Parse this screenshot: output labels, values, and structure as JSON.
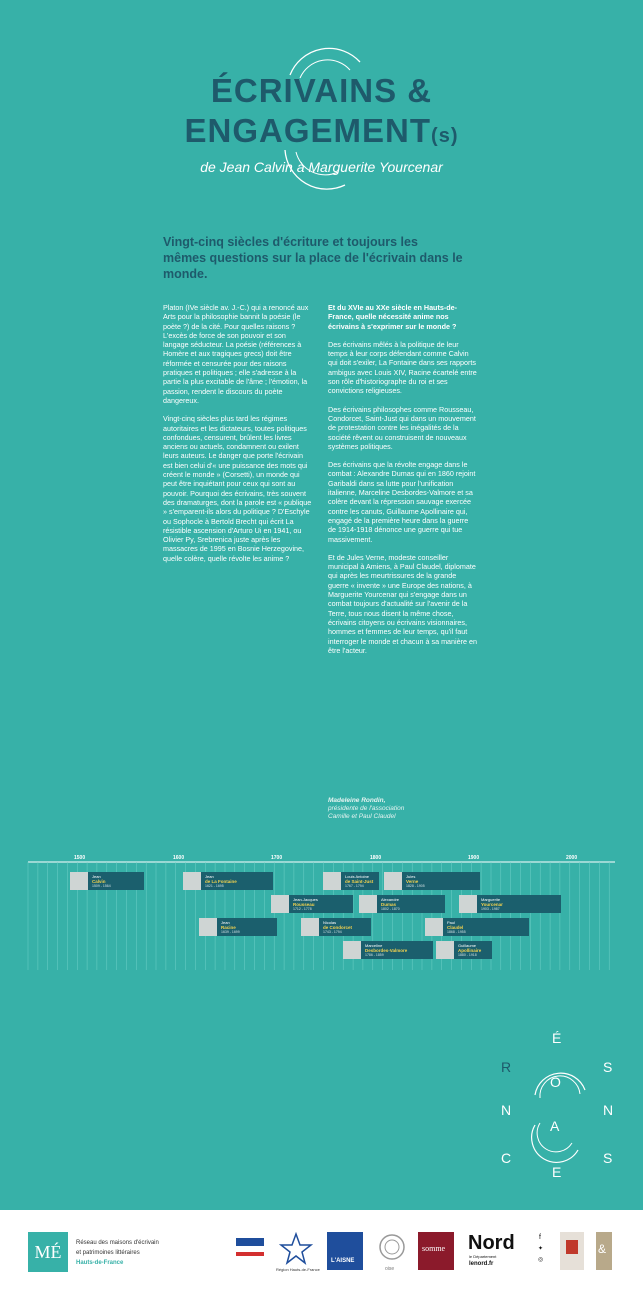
{
  "header": {
    "title_line1": "ÉCRIVAINS &",
    "title_line2": "ENGAGEMENT",
    "title_suffix": "(s)",
    "subtitle": "de Jean Calvin à Marguerite Yourcenar"
  },
  "intro": "Vingt-cinq siècles d'écriture et toujours les mêmes questions sur la place de l'écrivain dans le monde.",
  "left_column": [
    "Platon (IVe siècle av. J.-C.) qui a renoncé aux Arts pour la philosophie bannit la poésie (le poète ?) de la cité. Pour quelles raisons ? L'excès de force de son pouvoir et son langage séducteur. La poésie (références à Homère et aux tragiques grecs) doit être réformée et censurée pour des raisons pratiques et politiques ; elle s'adresse à la partie la plus excitable de l'âme ; l'émotion, la passion, rendent le discours du poète dangereux.",
    "Vingt-cinq siècles plus tard les régimes autoritaires et les dictateurs, toutes politiques confondues, censurent, brûlent les livres anciens ou actuels, condamnent ou exilent leurs auteurs. Le danger que porte l'écrivain est bien celui d'« une puissance des mots qui créent le monde » (Corsetti), un monde qui peut être inquiétant pour ceux qui sont au pouvoir. Pourquoi des écrivains, très souvent des dramaturges, dont la parole est « publique » s'emparent-ils alors du politique ? D'Eschyle ou Sophocle à Bertold Brecht qui écrit La résistible ascension d'Arturo Ui en 1941, ou Olivier Py, Srebrenica juste après les massacres de 1995 en Bosnie Herzegovine, quelle colère, quelle révolte les anime ?"
  ],
  "right_column": {
    "question": "Et du XVIe au XXe siècle en Hauts-de-France, quelle nécessité anime nos écrivains à s'exprimer sur le monde ?",
    "paragraphs": [
      "Des écrivains mêlés à la politique de leur temps à leur corps défendant comme Calvin qui doit s'exiler, La Fontaine dans ses rapports ambigus avec Louis XIV, Racine écartelé entre son rôle d'historiographe du roi et ses convictions religieuses.",
      "Des écrivains philosophes comme Rousseau, Condorcet, Saint-Just qui dans un mouvement de protestation contre les inégalités de la société rêvent ou construisent de nouveaux systèmes politiques.",
      "Des écrivains que la révolte engage dans le combat : Alexandre Dumas qui en 1860 rejoint Garibaldi dans sa lutte pour l'unification italienne, Marceline Desbordes-Valmore et sa colère devant la répression sauvage exercée contre les canuts, Guillaume Apollinaire qui, engagé de la première heure dans la guerre de 1914-1918 dénonce une guerre qui tue massivement.",
      "Et de Jules Verne, modeste conseiller municipal à Amiens, à Paul Claudel, diplomate qui après les meurtrissures de la grande guerre « invente » une Europe des nations, à Marguerite Yourcenar qui s'engage dans un combat toujours d'actualité sur l'avenir de la Terre, tous nous disent la même chose, écrivains citoyens ou écrivains visionnaires, hommes et femmes de leur temps, qu'il faut interroger le monde et chacun à sa manière en être l'acteur."
    ]
  },
  "author": {
    "name": "Madeleine Rondin,",
    "role_line1": "présidente de l'association",
    "role_line2": "Camille et Paul Claudel"
  },
  "timeline": {
    "ticks": [
      "1500",
      "1600",
      "1700",
      "1800",
      "1900",
      "2000"
    ],
    "writers": [
      {
        "first": "Jean",
        "last": "Calvin",
        "dates": "1509 - 1564"
      },
      {
        "first": "Jean",
        "last": "de La Fontaine",
        "dates": "1621 - 1695"
      },
      {
        "first": "Louis Antoine",
        "last": "de Saint-Just",
        "dates": "1767 - 1794"
      },
      {
        "first": "Jules",
        "last": "Verne",
        "dates": "1828 - 1905"
      },
      {
        "first": "Jean-Jacques",
        "last": "Rousseau",
        "dates": "1712 - 1778"
      },
      {
        "first": "Alexandre",
        "last": "Dumas",
        "dates": "1802 - 1870"
      },
      {
        "first": "Marguerite",
        "last": "Yourcenar",
        "dates": "1903 - 1987"
      },
      {
        "first": "Jean",
        "last": "Racine",
        "dates": "1639 - 1699"
      },
      {
        "first": "Nicolas",
        "last": "de Condorcet",
        "dates": "1743 - 1794"
      },
      {
        "first": "Paul",
        "last": "Claudel",
        "dates": "1868 - 1955"
      },
      {
        "first": "Marceline",
        "last": "Desbordes-Valmore",
        "dates": "1786 - 1859"
      },
      {
        "first": "Guillaume",
        "last": "Apollinaire",
        "dates": "1880 - 1918"
      }
    ]
  },
  "resonances": [
    "R",
    "É",
    "S",
    "O",
    "N",
    "A",
    "N",
    "C",
    "E",
    "S"
  ],
  "footer": {
    "network_logo": "MÉ",
    "network_line1": "Réseau des maisons d'écrivain",
    "network_line2": "et patrimoines littéraires",
    "network_region": "Hauts-de-France",
    "partners": {
      "region": "Région Hauts-de-France",
      "aisne": "L'AISNE",
      "oise": "oise",
      "somme": "somme",
      "nord": "Nord",
      "nord_sub": "le Département",
      "nord_url": "lenord.fr"
    }
  }
}
